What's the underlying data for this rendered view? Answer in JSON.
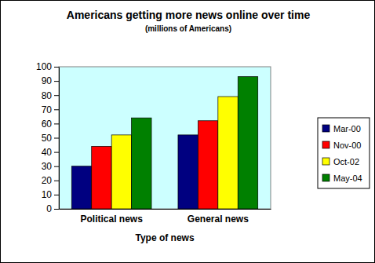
{
  "chart_data": {
    "type": "bar",
    "title": "Americans getting more news online over time",
    "subtitle": "(millions of Americans)",
    "x_label": "Type of news",
    "categories": [
      "Political news",
      "General news"
    ],
    "series": [
      {
        "name": "Mar-00",
        "color": "#000080",
        "values": [
          30,
          52
        ]
      },
      {
        "name": "Nov-00",
        "color": "#ff0000",
        "values": [
          44,
          62
        ]
      },
      {
        "name": "Oct-02",
        "color": "#ffff00",
        "values": [
          52,
          79
        ]
      },
      {
        "name": "May-04",
        "color": "#008000",
        "values": [
          64,
          93
        ]
      }
    ],
    "ylim": [
      0,
      100
    ],
    "yticks": [
      0,
      10,
      20,
      30,
      40,
      50,
      60,
      70,
      80,
      90,
      100
    ],
    "grid": false,
    "legend": "right"
  }
}
